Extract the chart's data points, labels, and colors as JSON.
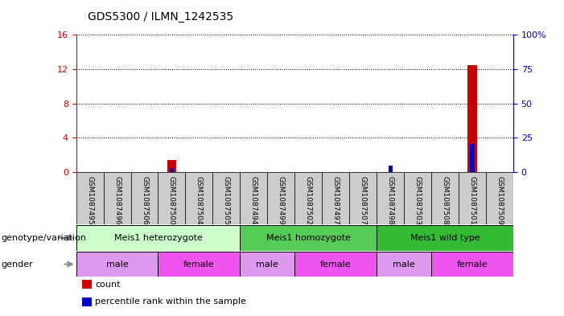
{
  "title": "GDS5300 / ILMN_1242535",
  "samples": [
    "GSM1087495",
    "GSM1087496",
    "GSM1087506",
    "GSM1087500",
    "GSM1087504",
    "GSM1087505",
    "GSM1087494",
    "GSM1087499",
    "GSM1087502",
    "GSM1087497",
    "GSM1087507",
    "GSM1087498",
    "GSM1087503",
    "GSM1087508",
    "GSM1087501",
    "GSM1087509"
  ],
  "count_values": [
    0,
    0,
    0,
    1.4,
    0,
    0,
    0,
    0,
    0,
    0,
    0,
    0,
    0,
    0,
    12.5,
    0
  ],
  "percentile_values": [
    0,
    0,
    0,
    3.0,
    0,
    0,
    0,
    0,
    0,
    0,
    0,
    5.0,
    0,
    0,
    20.5,
    0
  ],
  "ylim_left": [
    0,
    16
  ],
  "ylim_right": [
    0,
    100
  ],
  "yticks_left": [
    0,
    4,
    8,
    12,
    16
  ],
  "yticks_right": [
    0,
    25,
    50,
    75,
    100
  ],
  "ytick_labels_left": [
    "0",
    "4",
    "8",
    "12",
    "16"
  ],
  "ytick_labels_right": [
    "0",
    "25",
    "50",
    "75",
    "100%"
  ],
  "bar_color_red": "#cc0000",
  "bar_color_blue": "#0000cc",
  "bg_color": "#ffffff",
  "tick_label_color_left": "#cc0000",
  "tick_label_color_right": "#0000cc",
  "genotype_groups": [
    {
      "label": "Meis1 heterozygote",
      "start": 0,
      "end": 6,
      "color": "#ccffcc"
    },
    {
      "label": "Meis1 homozygote",
      "start": 6,
      "end": 11,
      "color": "#55cc55"
    },
    {
      "label": "Meis1 wild type",
      "start": 11,
      "end": 16,
      "color": "#33bb33"
    }
  ],
  "gender_groups": [
    {
      "label": "male",
      "start": 0,
      "end": 3,
      "color": "#dd99ee"
    },
    {
      "label": "female",
      "start": 3,
      "end": 6,
      "color": "#ee55ee"
    },
    {
      "label": "male",
      "start": 6,
      "end": 8,
      "color": "#dd99ee"
    },
    {
      "label": "female",
      "start": 8,
      "end": 11,
      "color": "#ee55ee"
    },
    {
      "label": "male",
      "start": 11,
      "end": 13,
      "color": "#dd99ee"
    },
    {
      "label": "female",
      "start": 13,
      "end": 16,
      "color": "#ee55ee"
    }
  ],
  "legend_items": [
    {
      "label": "count",
      "color": "#cc0000"
    },
    {
      "label": "percentile rank within the sample",
      "color": "#0000cc"
    }
  ],
  "genotype_label": "genotype/variation",
  "gender_label": "gender",
  "sample_bg_color": "#cccccc",
  "arrow_color": "#888888"
}
